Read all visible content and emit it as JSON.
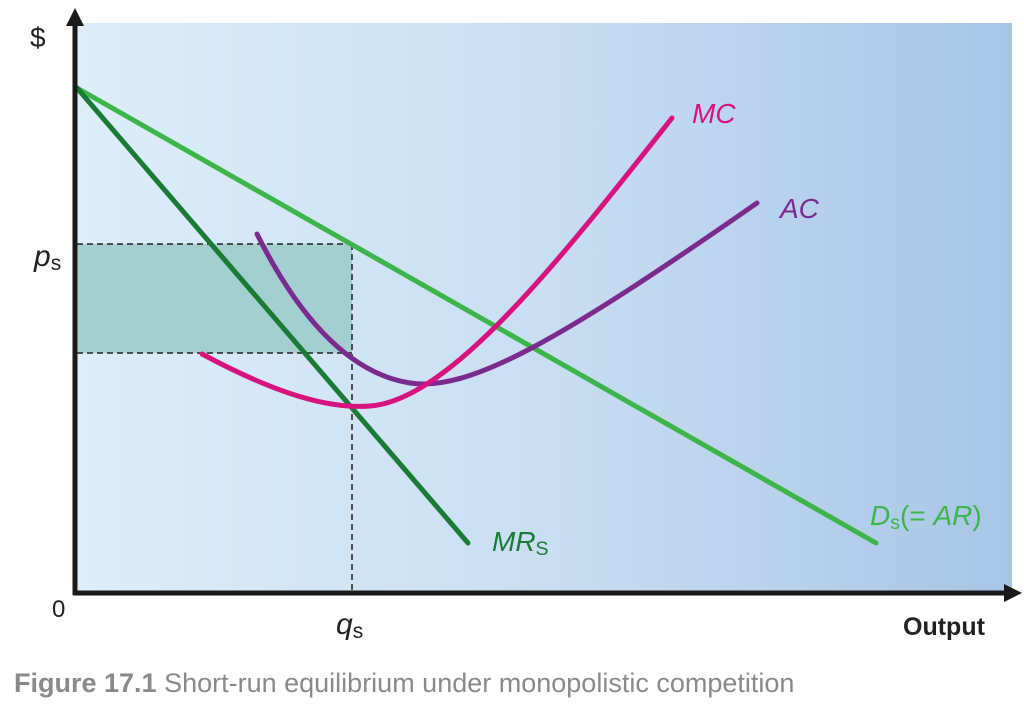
{
  "figure": {
    "y_axis_label": "$",
    "x_axis_label": "Output",
    "origin_label": "0",
    "price_label": "p",
    "price_sub": "s",
    "quantity_label": "q",
    "quantity_sub": "s",
    "curves": {
      "mc": {
        "label": "MC",
        "color": "#d6137f"
      },
      "ac": {
        "label": "AC",
        "color": "#7b2a8e"
      },
      "mr": {
        "label": "MR",
        "sub": "S",
        "color": "#1b7a36"
      },
      "d": {
        "label": "D",
        "sub": "s",
        "suffix_open": "(= ",
        "suffix_ar": "AR",
        "suffix_close": ")",
        "color": "#3cb54a"
      }
    },
    "profit_area_color": "#a3cfd0"
  },
  "caption": {
    "number": "Figure 17.1",
    "text": "Short-run equilibrium under monopolistic competition"
  }
}
